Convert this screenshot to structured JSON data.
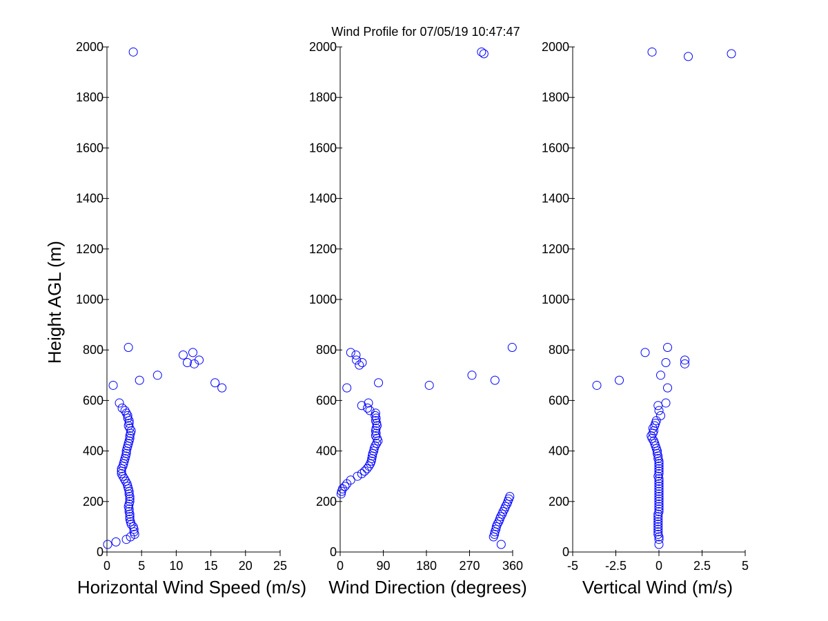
{
  "title": "Wind Profile for  07/05/19 10:47:47",
  "ylabel": "Height AGL (m)",
  "colors": {
    "marker": "#0000ff",
    "axis": "#000000",
    "background": "#ffffff"
  },
  "chart_data": [
    {
      "type": "scatter",
      "xlabel": "Horizontal Wind Speed (m/s)",
      "ylabel": "Height AGL (m)",
      "xlim": [
        0,
        25
      ],
      "ylim": [
        0,
        2000
      ],
      "xticks": [
        "0",
        "5",
        "10",
        "15",
        "20",
        "25"
      ],
      "yticks": [
        "0",
        "200",
        "400",
        "600",
        "800",
        "1000",
        "1200",
        "1400",
        "1600",
        "1800",
        "2000"
      ],
      "grid": false,
      "points": [
        [
          0.1,
          30
        ],
        [
          1.3,
          40
        ],
        [
          2.8,
          50
        ],
        [
          3.4,
          60
        ],
        [
          4.0,
          70
        ],
        [
          3.9,
          80
        ],
        [
          3.9,
          90
        ],
        [
          3.8,
          100
        ],
        [
          3.5,
          110
        ],
        [
          3.4,
          120
        ],
        [
          3.3,
          130
        ],
        [
          3.3,
          140
        ],
        [
          3.3,
          150
        ],
        [
          3.2,
          160
        ],
        [
          3.2,
          170
        ],
        [
          3.1,
          180
        ],
        [
          3.2,
          190
        ],
        [
          3.3,
          200
        ],
        [
          3.3,
          210
        ],
        [
          3.3,
          220
        ],
        [
          3.2,
          230
        ],
        [
          3.2,
          240
        ],
        [
          3.1,
          250
        ],
        [
          3.0,
          260
        ],
        [
          2.9,
          270
        ],
        [
          2.7,
          280
        ],
        [
          2.5,
          290
        ],
        [
          2.3,
          300
        ],
        [
          2.1,
          310
        ],
        [
          2.1,
          320
        ],
        [
          2.1,
          330
        ],
        [
          2.3,
          340
        ],
        [
          2.4,
          350
        ],
        [
          2.5,
          360
        ],
        [
          2.6,
          370
        ],
        [
          2.7,
          380
        ],
        [
          2.8,
          390
        ],
        [
          2.8,
          400
        ],
        [
          2.9,
          410
        ],
        [
          3.0,
          420
        ],
        [
          3.1,
          430
        ],
        [
          3.2,
          440
        ],
        [
          3.3,
          450
        ],
        [
          3.3,
          460
        ],
        [
          3.4,
          470
        ],
        [
          3.5,
          480
        ],
        [
          3.3,
          490
        ],
        [
          3.1,
          500
        ],
        [
          3.2,
          510
        ],
        [
          3.2,
          520
        ],
        [
          3.0,
          530
        ],
        [
          3.0,
          540
        ],
        [
          2.8,
          550
        ],
        [
          2.6,
          560
        ],
        [
          2.2,
          570
        ],
        [
          1.8,
          590
        ],
        [
          0.9,
          660
        ],
        [
          4.7,
          680
        ],
        [
          7.3,
          700
        ],
        [
          16.6,
          650
        ],
        [
          15.6,
          670
        ],
        [
          12.6,
          745
        ],
        [
          11.6,
          750
        ],
        [
          13.3,
          760
        ],
        [
          11.0,
          780
        ],
        [
          12.4,
          790
        ],
        [
          3.1,
          810
        ],
        [
          3.8,
          1980
        ]
      ]
    },
    {
      "type": "scatter",
      "xlabel": "Wind Direction (degrees)",
      "xlim": [
        0,
        360
      ],
      "ylim": [
        0,
        2000
      ],
      "xticks": [
        "0",
        "90",
        "180",
        "270",
        "360"
      ],
      "yticks": [
        "0",
        "200",
        "400",
        "600",
        "800",
        "1000",
        "1200",
        "1400",
        "1600",
        "1800",
        "2000"
      ],
      "grid": false,
      "points": [
        [
          336,
          30
        ],
        [
          320,
          60
        ],
        [
          322,
          70
        ],
        [
          323,
          80
        ],
        [
          325,
          90
        ],
        [
          326,
          100
        ],
        [
          328,
          110
        ],
        [
          331,
          120
        ],
        [
          333,
          130
        ],
        [
          335,
          140
        ],
        [
          338,
          150
        ],
        [
          340,
          160
        ],
        [
          343,
          170
        ],
        [
          345,
          180
        ],
        [
          348,
          190
        ],
        [
          350,
          200
        ],
        [
          352,
          210
        ],
        [
          354,
          220
        ],
        [
          2,
          230
        ],
        [
          3,
          240
        ],
        [
          5,
          250
        ],
        [
          10,
          260
        ],
        [
          14,
          270
        ],
        [
          22,
          285
        ],
        [
          36,
          300
        ],
        [
          45,
          310
        ],
        [
          51,
          320
        ],
        [
          56,
          330
        ],
        [
          60,
          340
        ],
        [
          63,
          350
        ],
        [
          65,
          360
        ],
        [
          66,
          370
        ],
        [
          67,
          380
        ],
        [
          68,
          390
        ],
        [
          70,
          400
        ],
        [
          71,
          410
        ],
        [
          73,
          420
        ],
        [
          76,
          430
        ],
        [
          79,
          440
        ],
        [
          77,
          450
        ],
        [
          74,
          460
        ],
        [
          75,
          470
        ],
        [
          74,
          480
        ],
        [
          75,
          490
        ],
        [
          77,
          500
        ],
        [
          76,
          510
        ],
        [
          74,
          520
        ],
        [
          75,
          530
        ],
        [
          73,
          540
        ],
        [
          74,
          550
        ],
        [
          62,
          560
        ],
        [
          57,
          570
        ],
        [
          59,
          590
        ],
        [
          45,
          580
        ],
        [
          14,
          650
        ],
        [
          80,
          670
        ],
        [
          186,
          660
        ],
        [
          275,
          700
        ],
        [
          323,
          680
        ],
        [
          359,
          810
        ],
        [
          22,
          790
        ],
        [
          33,
          780
        ],
        [
          34,
          760
        ],
        [
          46,
          750
        ],
        [
          40,
          740
        ],
        [
          295,
          1980
        ],
        [
          300,
          1973
        ]
      ]
    },
    {
      "type": "scatter",
      "xlabel": "Vertical Wind (m/s)",
      "xlim": [
        -5,
        5
      ],
      "ylim": [
        0,
        2000
      ],
      "xticks": [
        "-5",
        "-2.5",
        "0",
        "2.5",
        "5"
      ],
      "yticks": [
        "0",
        "200",
        "400",
        "600",
        "800",
        "1000",
        "1200",
        "1400",
        "1600",
        "1800",
        "2000"
      ],
      "grid": false,
      "points": [
        [
          0.0,
          30
        ],
        [
          0.0,
          50
        ],
        [
          0.0,
          60
        ],
        [
          -0.05,
          70
        ],
        [
          -0.05,
          80
        ],
        [
          -0.05,
          90
        ],
        [
          -0.05,
          100
        ],
        [
          -0.05,
          110
        ],
        [
          -0.05,
          120
        ],
        [
          -0.05,
          130
        ],
        [
          -0.05,
          140
        ],
        [
          -0.05,
          150
        ],
        [
          0.0,
          160
        ],
        [
          0.0,
          170
        ],
        [
          0.0,
          180
        ],
        [
          0.0,
          190
        ],
        [
          0.0,
          200
        ],
        [
          0.0,
          210
        ],
        [
          0.0,
          220
        ],
        [
          0.0,
          230
        ],
        [
          0.0,
          240
        ],
        [
          0.0,
          250
        ],
        [
          0.0,
          260
        ],
        [
          0.0,
          270
        ],
        [
          0.0,
          280
        ],
        [
          0.0,
          290
        ],
        [
          -0.05,
          300
        ],
        [
          0.0,
          310
        ],
        [
          0.0,
          320
        ],
        [
          0.0,
          330
        ],
        [
          0.0,
          340
        ],
        [
          0.0,
          350
        ],
        [
          0.0,
          360
        ],
        [
          -0.05,
          370
        ],
        [
          -0.05,
          380
        ],
        [
          -0.1,
          390
        ],
        [
          -0.1,
          400
        ],
        [
          -0.15,
          410
        ],
        [
          -0.2,
          420
        ],
        [
          -0.25,
          430
        ],
        [
          -0.3,
          440
        ],
        [
          -0.4,
          450
        ],
        [
          -0.45,
          460
        ],
        [
          -0.35,
          470
        ],
        [
          -0.3,
          480
        ],
        [
          -0.35,
          490
        ],
        [
          -0.25,
          500
        ],
        [
          -0.2,
          510
        ],
        [
          -0.15,
          520
        ],
        [
          0.1,
          540
        ],
        [
          0.0,
          560
        ],
        [
          -0.05,
          580
        ],
        [
          0.4,
          590
        ],
        [
          0.5,
          650
        ],
        [
          0.1,
          700
        ],
        [
          0.4,
          750
        ],
        [
          1.5,
          745
        ],
        [
          1.5,
          760
        ],
        [
          -0.8,
          790
        ],
        [
          0.5,
          810
        ],
        [
          -2.3,
          680
        ],
        [
          -3.6,
          660
        ],
        [
          -0.4,
          1980
        ],
        [
          1.7,
          1962
        ],
        [
          4.2,
          1973
        ]
      ]
    }
  ]
}
